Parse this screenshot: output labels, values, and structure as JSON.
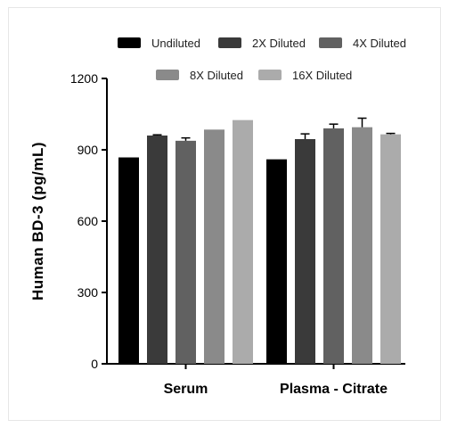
{
  "chart_data": {
    "type": "bar",
    "categories": [
      "Serum",
      "Plasma - Citrate"
    ],
    "ylabel": "Human BD-3 (pg/mL)",
    "xlabel": "",
    "ylim": [
      0,
      1200
    ],
    "yticks": [
      0,
      300,
      600,
      900,
      1200
    ],
    "grid": false,
    "legend_position": "top",
    "series": [
      {
        "name": "Undiluted",
        "color": "#000000",
        "values": [
          868,
          860
        ],
        "errors": [
          0,
          0
        ]
      },
      {
        "name": "2X Diluted",
        "color": "#3a3a3a",
        "values": [
          960,
          945
        ],
        "errors": [
          3,
          22
        ]
      },
      {
        "name": "4X Diluted",
        "color": "#616161",
        "values": [
          938,
          990
        ],
        "errors": [
          12,
          18
        ]
      },
      {
        "name": "8X Diluted",
        "color": "#8a8a8a",
        "values": [
          985,
          995
        ],
        "errors": [
          0,
          38
        ]
      },
      {
        "name": "16X Diluted",
        "color": "#ababab",
        "values": [
          1025,
          965
        ],
        "errors": [
          0,
          4
        ]
      }
    ]
  }
}
